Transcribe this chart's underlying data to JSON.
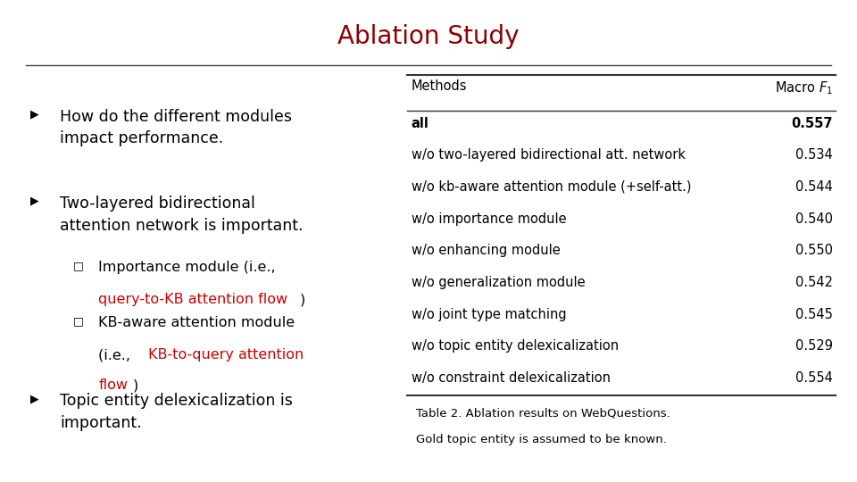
{
  "title": "Ablation Study",
  "title_color": "#8B0000",
  "title_fontsize": 20,
  "bg_color": "#FFFFFF",
  "table_methods": [
    "all",
    "w/o two-layered bidirectional att. network",
    "w/o kb-aware attention module (+self-att.)",
    "w/o importance module",
    "w/o enhancing module",
    "w/o generalization module",
    "w/o joint type matching",
    "w/o topic entity delexicalization",
    "w/o constraint delexicalization"
  ],
  "table_values": [
    "0.557",
    "0.534",
    "0.544",
    "0.540",
    "0.550",
    "0.542",
    "0.545",
    "0.529",
    "0.554"
  ],
  "table_bold_row": 0,
  "table_caption_line1": "Table 2. Ablation results on WebQuestions.",
  "table_caption_line2": "Gold topic entity is assumed to be known."
}
